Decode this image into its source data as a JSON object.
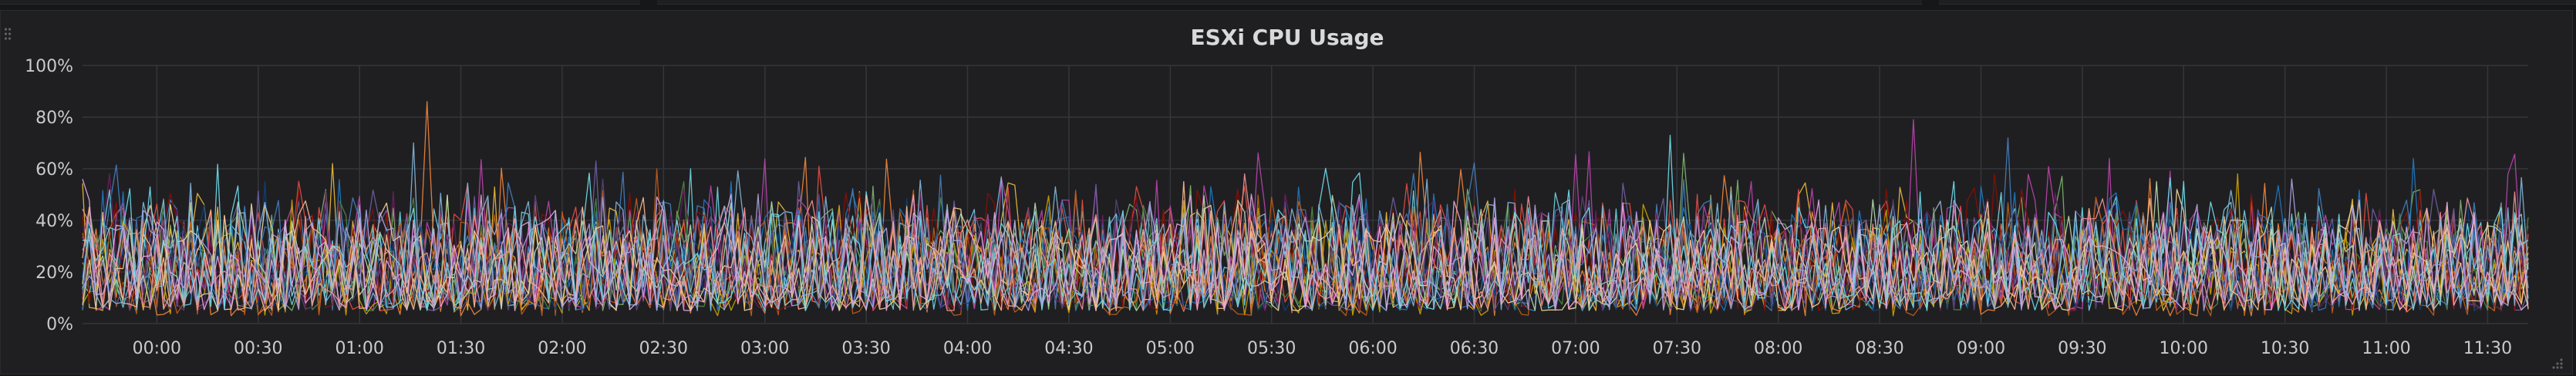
{
  "panel": {
    "title": "ESXi CPU Usage"
  },
  "chart_data": {
    "type": "line",
    "title": "ESXi CPU Usage",
    "xlabel": "",
    "ylabel": "",
    "ylim": [
      0,
      100
    ],
    "y_unit": "%",
    "y_ticks": [
      "0%",
      "20%",
      "40%",
      "60%",
      "80%",
      "100%"
    ],
    "x_ticks": [
      "00:00",
      "00:30",
      "01:00",
      "01:30",
      "02:00",
      "02:30",
      "03:00",
      "03:30",
      "04:00",
      "04:30",
      "05:00",
      "05:30",
      "06:00",
      "06:30",
      "07:00",
      "07:30",
      "08:00",
      "08:30",
      "09:00",
      "09:30",
      "10:00",
      "10:30",
      "11:00",
      "11:30"
    ],
    "xlim": [
      "23:38",
      "11:42"
    ],
    "grid": true,
    "legend": "none",
    "sample_interval_minutes": 2,
    "series": [
      {
        "color": "#7EB26D",
        "typical_range": [
          5,
          45
        ],
        "peak": 66
      },
      {
        "color": "#EAB839",
        "typical_range": [
          5,
          45
        ],
        "peak": 62
      },
      {
        "color": "#6ED0E0",
        "typical_range": [
          5,
          45
        ],
        "peak": 60
      },
      {
        "color": "#EF843C",
        "typical_range": [
          3,
          40
        ],
        "peak": 86
      },
      {
        "color": "#E24D42",
        "typical_range": [
          5,
          48
        ],
        "peak": 61
      },
      {
        "color": "#1F78C1",
        "typical_range": [
          5,
          45
        ],
        "peak": 64
      },
      {
        "color": "#BA43A9",
        "typical_range": [
          5,
          48
        ],
        "peak": 79
      },
      {
        "color": "#705DA0",
        "typical_range": [
          5,
          45
        ],
        "peak": 63
      },
      {
        "color": "#508642",
        "typical_range": [
          5,
          40
        ],
        "peak": 55
      },
      {
        "color": "#CCA300",
        "typical_range": [
          3,
          38
        ],
        "peak": 58
      },
      {
        "color": "#447EBC",
        "typical_range": [
          5,
          48
        ],
        "peak": 72
      },
      {
        "color": "#C15C17",
        "typical_range": [
          3,
          40
        ],
        "peak": 60
      },
      {
        "color": "#890F02",
        "typical_range": [
          5,
          45
        ],
        "peak": 58
      },
      {
        "color": "#0A437C",
        "typical_range": [
          5,
          40
        ],
        "peak": 55
      },
      {
        "color": "#6D1F62",
        "typical_range": [
          5,
          45
        ],
        "peak": 58
      },
      {
        "color": "#584477",
        "typical_range": [
          5,
          42
        ],
        "peak": 56
      },
      {
        "color": "#B7DBAB",
        "typical_range": [
          5,
          42
        ],
        "peak": 55
      },
      {
        "color": "#F4D598",
        "typical_range": [
          5,
          40
        ],
        "peak": 52
      },
      {
        "color": "#70DBED",
        "typical_range": [
          5,
          45
        ],
        "peak": 73
      },
      {
        "color": "#F9BA8F",
        "typical_range": [
          5,
          40
        ],
        "peak": 55
      },
      {
        "color": "#F29191",
        "typical_range": [
          5,
          42
        ],
        "peak": 58
      },
      {
        "color": "#82B5D8",
        "typical_range": [
          5,
          48
        ],
        "peak": 70
      },
      {
        "color": "#E5A8E2",
        "typical_range": [
          5,
          42
        ],
        "peak": 56
      },
      {
        "color": "#AEA2E0",
        "typical_range": [
          5,
          42
        ],
        "peak": 56
      }
    ]
  }
}
